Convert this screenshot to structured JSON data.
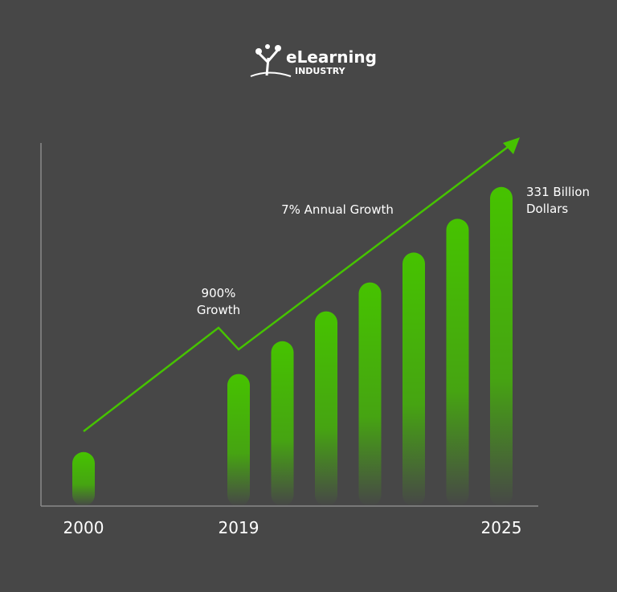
{
  "logo": {
    "line1": "eLearning",
    "line2": "INDUSTRY"
  },
  "chart_data": {
    "type": "bar",
    "categories": [
      "2000",
      "2019",
      null,
      null,
      null,
      null,
      null,
      "2025"
    ],
    "values": [
      56,
      137,
      171,
      202,
      232,
      263,
      298,
      331
    ],
    "color": "#46c300",
    "ylim": [
      0,
      375
    ],
    "annotations": [
      {
        "lines": [
          "900%",
          "Growth"
        ]
      },
      {
        "lines": [
          "7% Annual Growth"
        ]
      },
      {
        "lines": [
          "331 Billion",
          "Dollars"
        ]
      }
    ]
  }
}
